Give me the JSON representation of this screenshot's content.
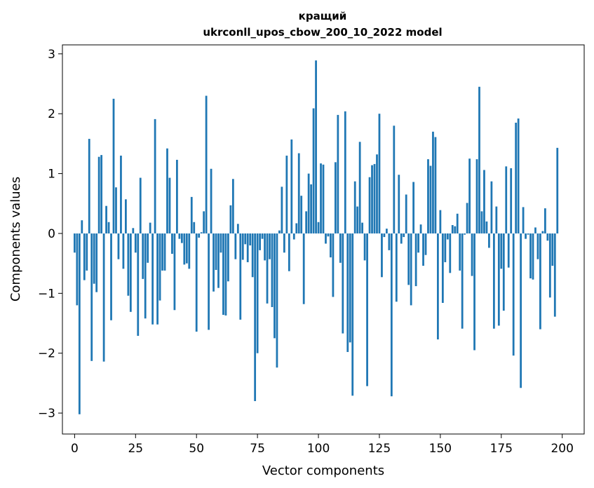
{
  "chart_data": {
    "type": "bar",
    "title": "кращий",
    "subtitle": "ukrconll_upos_cbow_200_10_2022 model",
    "xlabel": "Vector components",
    "ylabel": "Components values",
    "xlim": [
      -5,
      209
    ],
    "ylim": [
      -3.35,
      3.15
    ],
    "xticks": [
      0,
      25,
      50,
      75,
      100,
      125,
      150,
      175,
      200
    ],
    "yticks": [
      -3,
      -2,
      -1,
      0,
      1,
      2,
      3
    ],
    "xtick_labels": [
      "0",
      "25",
      "50",
      "75",
      "100",
      "125",
      "150",
      "175",
      "200"
    ],
    "ytick_labels": [
      "−3",
      "−2",
      "−1",
      "0",
      "1",
      "2",
      "3"
    ],
    "color": "#1f77b4",
    "grid": false,
    "x_start": 0,
    "values": [
      -0.32,
      -1.2,
      -3.02,
      0.22,
      -0.78,
      -0.62,
      1.58,
      -2.13,
      -0.84,
      -0.98,
      1.28,
      1.31,
      -2.14,
      0.46,
      0.19,
      -1.45,
      2.25,
      0.77,
      -0.43,
      1.3,
      -0.59,
      0.57,
      -1.04,
      -1.31,
      0.09,
      -0.32,
      -1.71,
      0.93,
      -0.76,
      -1.42,
      -0.49,
      0.18,
      -1.52,
      1.91,
      -1.52,
      -1.12,
      -0.62,
      -0.62,
      1.42,
      0.93,
      -0.34,
      -1.28,
      1.23,
      -0.09,
      -0.16,
      -0.52,
      -0.5,
      -0.59,
      0.61,
      0.19,
      -1.64,
      -0.07,
      0.02,
      0.37,
      2.3,
      -1.61,
      1.08,
      -0.97,
      -0.61,
      -0.91,
      -0.32,
      -1.36,
      -1.37,
      -0.8,
      0.47,
      0.91,
      -0.43,
      0.16,
      -1.44,
      -0.44,
      -0.18,
      -0.48,
      -0.2,
      -0.73,
      -2.8,
      -2.0,
      -0.28,
      -0.09,
      -0.45,
      -1.17,
      -0.43,
      -1.23,
      -1.75,
      -2.24,
      0.05,
      0.78,
      -0.32,
      1.3,
      -0.63,
      1.57,
      -0.1,
      0.17,
      1.34,
      0.63,
      -1.18,
      0.37,
      1.0,
      0.82,
      2.09,
      2.89,
      0.19,
      1.17,
      1.15,
      -0.17,
      -0.05,
      -0.4,
      -1.06,
      1.19,
      1.98,
      -0.49,
      -1.67,
      2.04,
      -1.98,
      -1.82,
      -2.71,
      0.87,
      0.45,
      1.53,
      0.18,
      -0.45,
      -2.55,
      0.94,
      1.14,
      1.16,
      1.32,
      2.0,
      -0.73,
      -0.06,
      0.08,
      -0.28,
      -2.72,
      1.8,
      -1.14,
      0.98,
      -0.17,
      -0.06,
      0.65,
      -0.86,
      -1.2,
      0.86,
      -0.88,
      -0.32,
      0.15,
      -0.54,
      -0.36,
      1.24,
      1.13,
      1.7,
      1.61,
      -1.77,
      0.39,
      -1.16,
      -0.48,
      -0.1,
      -0.66,
      0.14,
      0.12,
      0.33,
      -0.62,
      -1.59,
      -0.02,
      0.51,
      1.25,
      -0.71,
      -1.95,
      1.24,
      2.45,
      0.37,
      1.06,
      0.2,
      -0.24,
      0.87,
      -1.59,
      0.45,
      -1.54,
      -0.59,
      -1.29,
      1.12,
      -0.57,
      1.09,
      -2.04,
      1.85,
      1.92,
      -2.58,
      0.44,
      -0.09,
      -0.02,
      -0.75,
      -0.77,
      0.1,
      -0.43,
      -1.6,
      0.04,
      0.42,
      -0.12,
      -1.07,
      -0.54,
      -1.39,
      1.43,
      0.0
    ]
  }
}
